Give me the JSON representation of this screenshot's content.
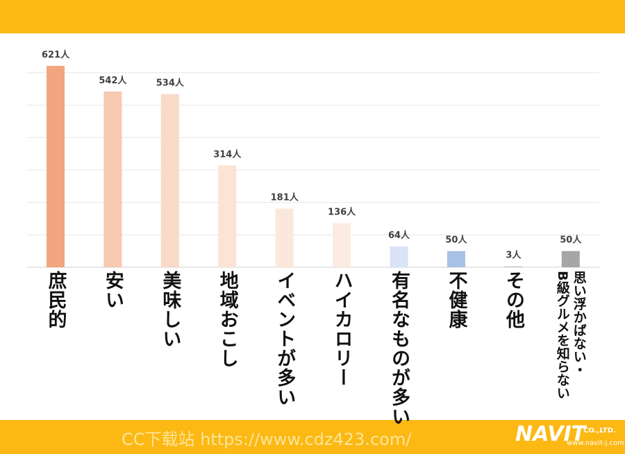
{
  "chart_data": {
    "type": "bar",
    "categories": [
      "庶民的",
      "安い",
      "美味しい",
      "地域おこし",
      "イベントが多い",
      "ハイカロリー",
      "有名なものが多い",
      "不健康",
      "その他",
      "思い浮かばない・\nB級グルメを知らない"
    ],
    "values": [
      621,
      542,
      534,
      314,
      181,
      136,
      64,
      50,
      3,
      50
    ],
    "value_labels": [
      "621人",
      "542人",
      "534人",
      "314人",
      "181人",
      "136人",
      "64人",
      "50人",
      "3人",
      "50人"
    ],
    "colors": [
      "#f2a57f",
      "#f7c9b0",
      "#f9d9c8",
      "#fbe3d6",
      "#fbe8dd",
      "#fcebe2",
      "#d9e3f5",
      "#a9c1e6",
      "#c9c9c9",
      "#a6a6a6"
    ],
    "ylim": [
      0,
      700
    ],
    "yticks": [
      0,
      100,
      200,
      300,
      400,
      500,
      600
    ],
    "grid": true
  },
  "footer": {
    "watermark": "CC下载站  https://www.cdz423.com/",
    "logo": "NAVIT",
    "company": "CO.,LTD.",
    "url": "www.navit-j.com"
  }
}
